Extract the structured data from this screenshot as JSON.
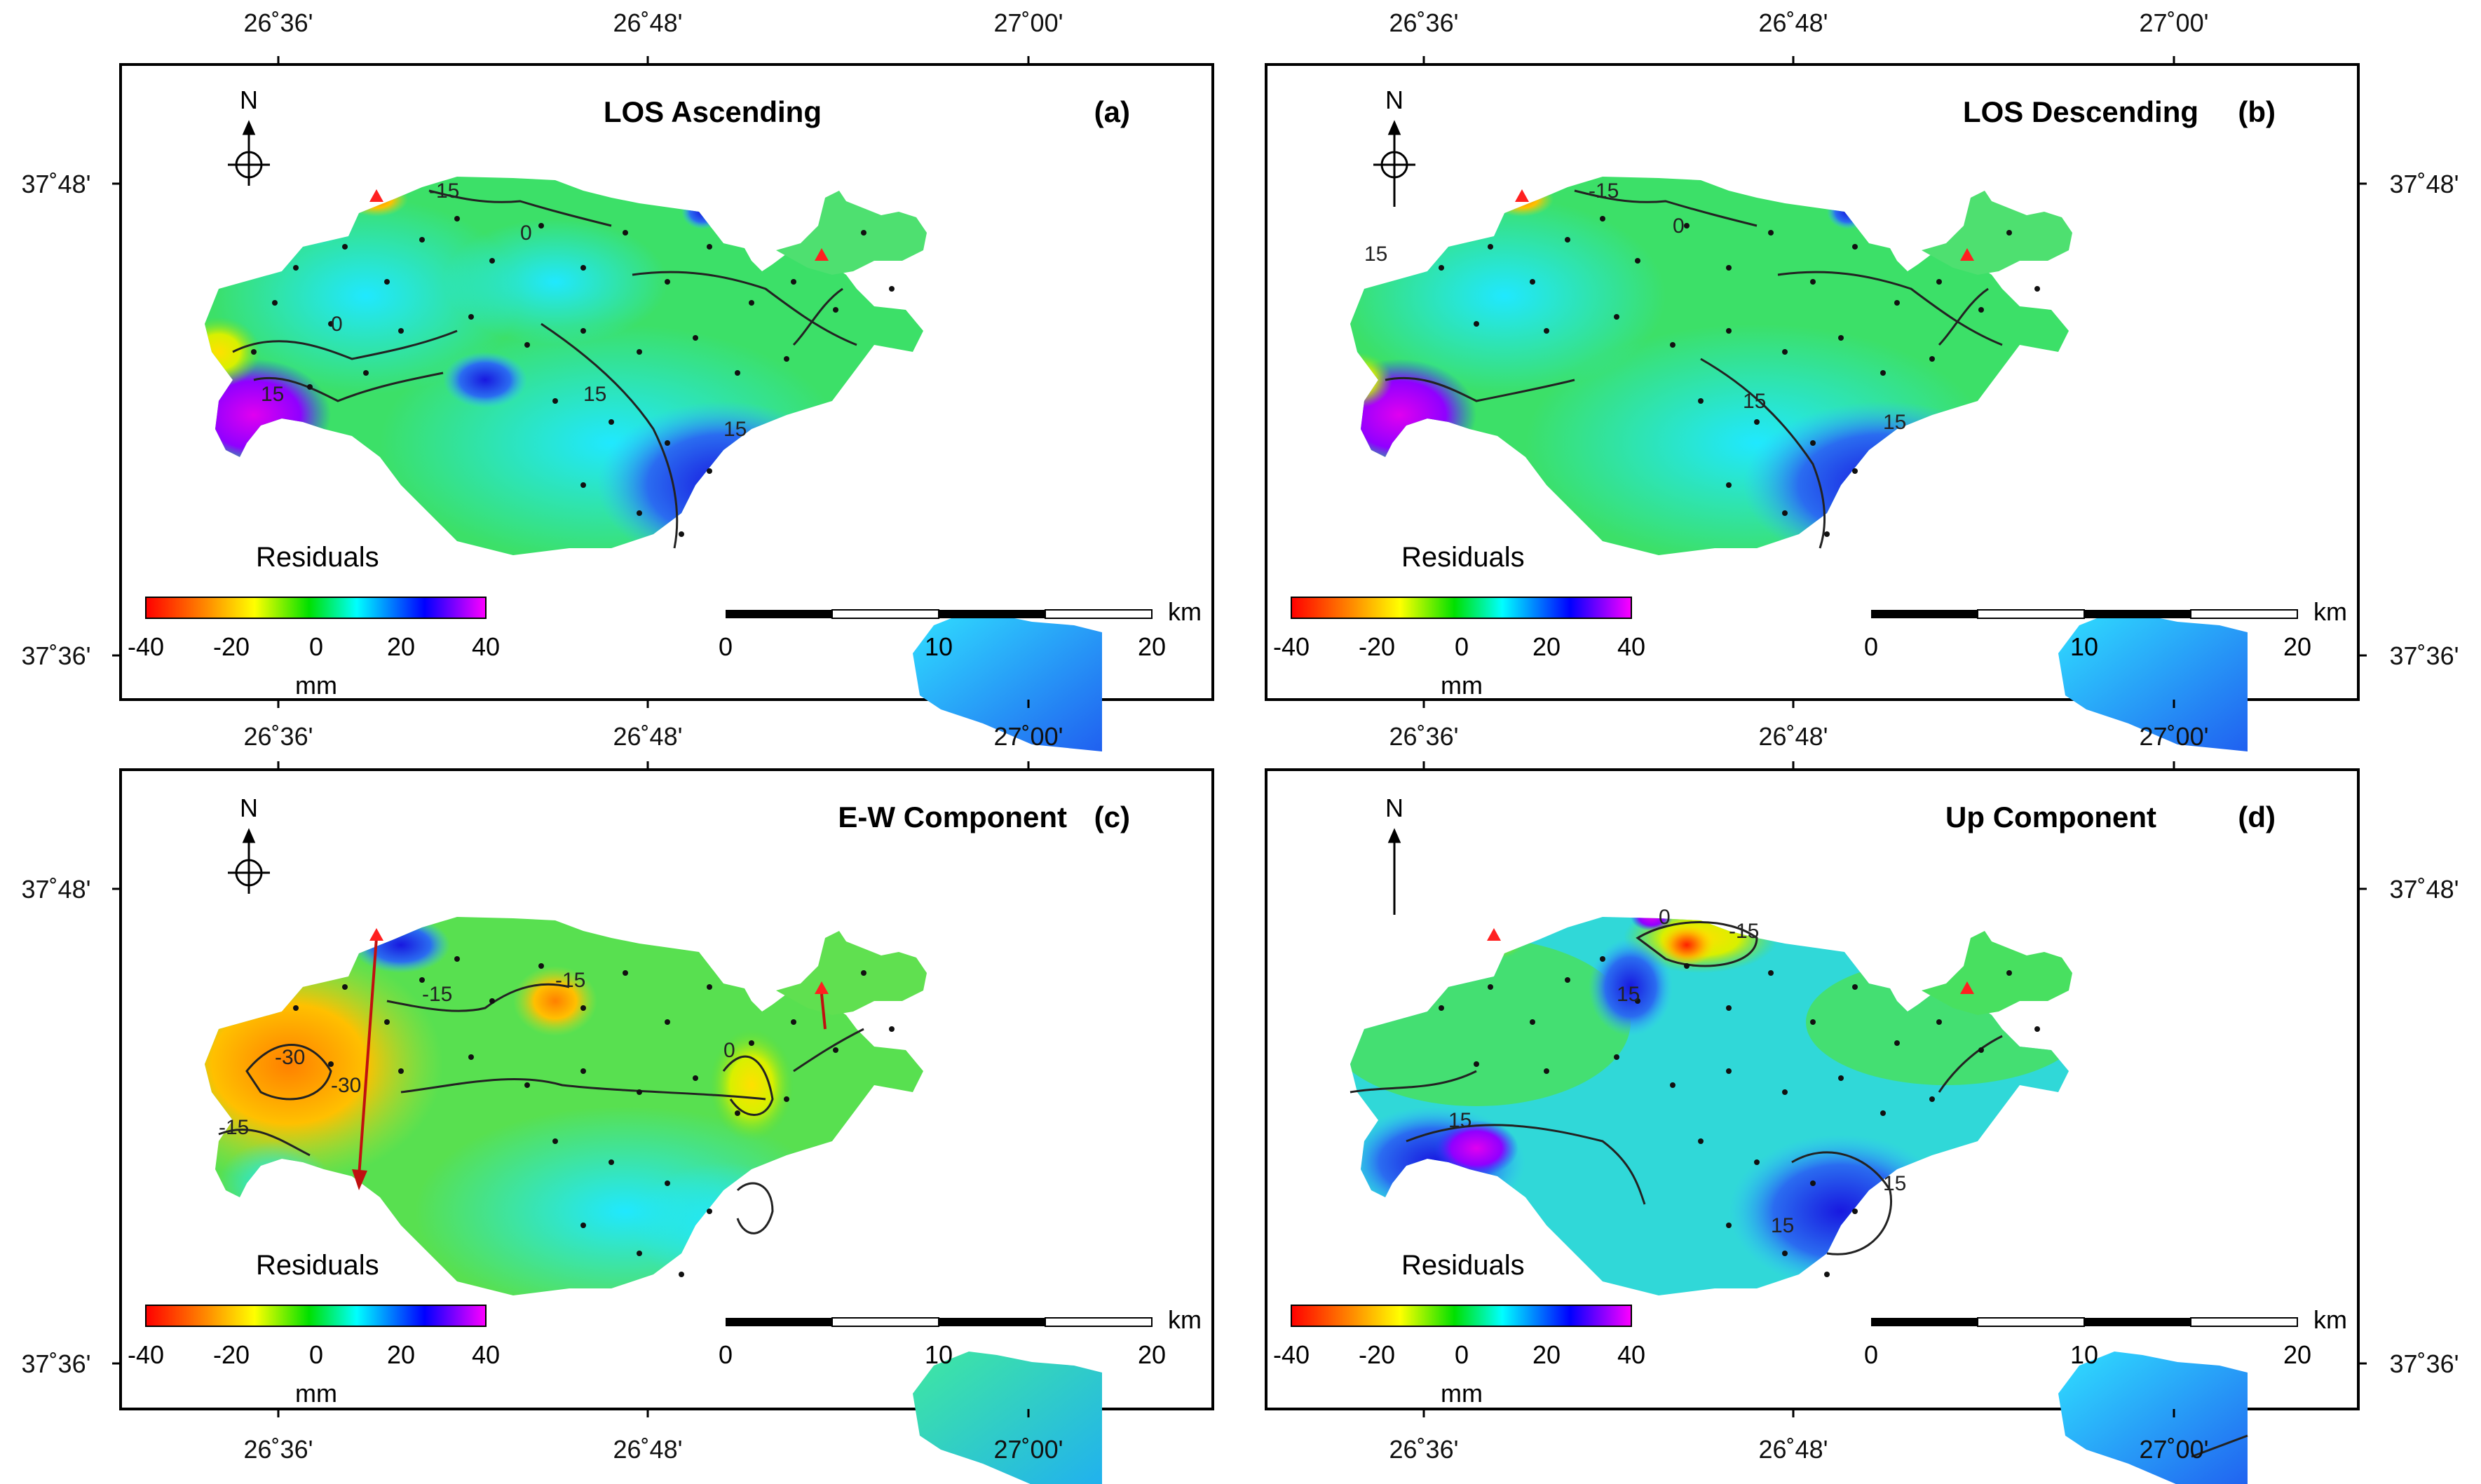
{
  "coord_labels": {
    "lon": [
      "26˚36'",
      "26˚48'",
      "27˚00'"
    ],
    "lat": [
      "37˚48'",
      "37˚36'"
    ]
  },
  "north_label": "N",
  "legend": {
    "title": "Residuals",
    "ticks": [
      "-40",
      "-20",
      "0",
      "20",
      "40"
    ],
    "unit": "mm",
    "colors": [
      "#ff0000",
      "#ff8c00",
      "#ffff00",
      "#00e000",
      "#00ffff",
      "#0000ff",
      "#ff00ff"
    ]
  },
  "scalebar": {
    "ticks": [
      "0",
      "10",
      "20"
    ],
    "unit": "km"
  },
  "panels": [
    {
      "title": "LOS Ascending",
      "tag": "(a)",
      "contours": [
        "-15",
        "0",
        "15"
      ]
    },
    {
      "title": "LOS Descending",
      "tag": "(b)",
      "contours": [
        "-15",
        "0",
        "15"
      ]
    },
    {
      "title": "E-W Component",
      "tag": "(c)",
      "contours": [
        "-30",
        "-15",
        "0"
      ]
    },
    {
      "title": "Up Component",
      "tag": "(d)",
      "contours": [
        "-15",
        "0",
        "15"
      ]
    }
  ]
}
